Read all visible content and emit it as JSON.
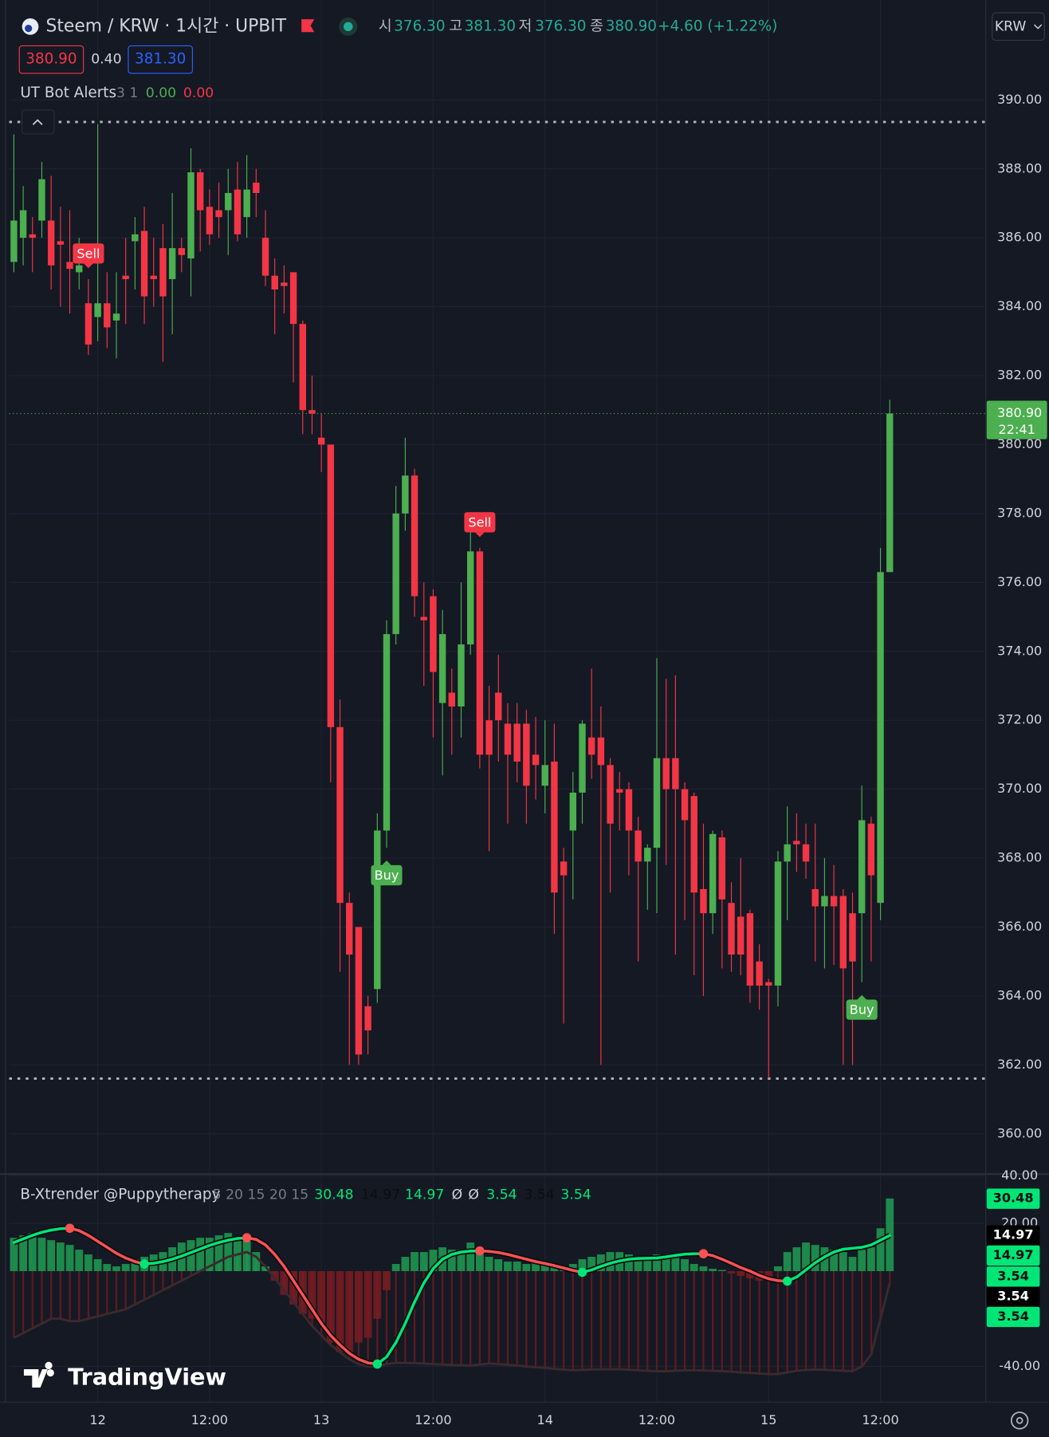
{
  "header": {
    "symbol": "Steem / KRW · 1시간 · UPBIT",
    "ohlc": [
      {
        "label": "시",
        "value": "376.30"
      },
      {
        "label": "고",
        "value": "381.30"
      },
      {
        "label": "저",
        "value": "376.30"
      },
      {
        "label": "종",
        "value": "380.90"
      }
    ],
    "change": "+4.60 (+1.22%)",
    "bid": "380.90",
    "spread": "0.40",
    "ask": "381.30",
    "currency": "KRW"
  },
  "indicator": {
    "name": "UT Bot Alerts",
    "params": "3 1",
    "values": [
      "0.00",
      "0.00"
    ]
  },
  "branding": "TradingView",
  "chart_data": [
    {
      "type": "candlestick",
      "up_color": "#4caf50",
      "down_color": "#f23645",
      "open": [
        385.3,
        386.0,
        386.1,
        386.5,
        386.5,
        385.9,
        385.3,
        385.0,
        384.1,
        383.7,
        384.1,
        383.6,
        384.9,
        385.9,
        386.2,
        384.9,
        385.7,
        384.8,
        385.7,
        385.4,
        387.9,
        386.9,
        386.8,
        386.8,
        387.4,
        386.6,
        387.6,
        386.0,
        384.9,
        384.7,
        385.0,
        383.5,
        381.0,
        380.2,
        380.0,
        371.8,
        366.7,
        366.0,
        363.7,
        364.2,
        368.8,
        374.5,
        378.0,
        379.1,
        375.0,
        375.6,
        372.5,
        372.8,
        372.4,
        374.2,
        376.9,
        372.0,
        372.8,
        371.9,
        371.9,
        371.9,
        371.0,
        370.1,
        370.8,
        367.9,
        368.8,
        369.9,
        371.5,
        371.5,
        370.7,
        370.0,
        370.0,
        368.8,
        367.9,
        368.3,
        370.9,
        370.9,
        370.0,
        369.8,
        367.1,
        366.4,
        368.6,
        366.7,
        366.3,
        366.4,
        365.0,
        364.4,
        364.3,
        367.9,
        368.5,
        368.4,
        367.1,
        366.6,
        366.9,
        366.9,
        366.4,
        366.4,
        369.0,
        366.7,
        376.3
      ],
      "high": [
        389.0,
        387.5,
        386.6,
        388.2,
        387.8,
        386.9,
        386.8,
        386.0,
        384.8,
        389.3,
        385.0,
        385.0,
        386.0,
        386.6,
        386.9,
        386.0,
        386.4,
        387.3,
        386.0,
        388.6,
        388.0,
        387.4,
        387.6,
        388.0,
        388.2,
        388.4,
        388.0,
        386.8,
        385.4,
        385.2,
        385.0,
        383.6,
        382.0,
        380.9,
        380.0,
        372.6,
        367.0,
        366.0,
        364.0,
        369.3,
        374.9,
        378.8,
        380.2,
        379.3,
        376.0,
        375.8,
        375.2,
        373.5,
        376.0,
        377.6,
        377.0,
        373.0,
        373.9,
        372.5,
        372.5,
        372.3,
        372.1,
        372.0,
        371.9,
        368.3,
        370.5,
        372.0,
        373.5,
        372.4,
        370.9,
        370.5,
        370.2,
        369.2,
        368.4,
        373.8,
        373.2,
        373.3,
        370.2,
        369.9,
        369.0,
        368.8,
        368.8,
        367.3,
        368.0,
        366.5,
        365.5,
        364.5,
        368.2,
        369.5,
        369.3,
        369.0,
        369.0,
        368.0,
        367.8,
        367.1,
        367.0,
        370.1,
        369.2,
        377.0,
        381.3
      ],
      "low": [
        385.0,
        385.2,
        385.0,
        386.0,
        384.5,
        384.0,
        383.8,
        384.5,
        382.6,
        383.0,
        382.8,
        382.5,
        383.5,
        384.5,
        383.5,
        384.0,
        382.4,
        383.2,
        385.0,
        384.3,
        385.6,
        385.8,
        386.0,
        385.5,
        385.9,
        386.0,
        386.6,
        384.6,
        383.2,
        383.8,
        381.8,
        380.3,
        380.3,
        379.2,
        370.2,
        364.7,
        362.0,
        362.0,
        362.3,
        363.8,
        368.3,
        374.2,
        377.5,
        375.0,
        373.0,
        371.5,
        370.4,
        371.0,
        371.5,
        373.9,
        370.6,
        368.2,
        370.8,
        369.0,
        370.2,
        369.0,
        369.7,
        369.3,
        365.8,
        363.2,
        366.8,
        369.0,
        370.3,
        362.0,
        367.0,
        368.8,
        367.5,
        365.0,
        366.5,
        366.4,
        367.8,
        365.2,
        366.2,
        364.6,
        364.0,
        365.8,
        364.8,
        364.7,
        364.6,
        363.8,
        363.6,
        361.6,
        363.7,
        366.2,
        367.6,
        367.4,
        365.0,
        364.8,
        364.9,
        362.0,
        362.0,
        364.4,
        365.0,
        366.2,
        376.3
      ],
      "close": [
        386.5,
        386.8,
        386.0,
        387.7,
        385.2,
        385.8,
        385.1,
        385.2,
        382.9,
        384.1,
        383.4,
        383.8,
        384.8,
        386.1,
        384.3,
        384.8,
        384.3,
        385.7,
        385.5,
        387.9,
        386.8,
        386.1,
        386.6,
        387.3,
        386.1,
        387.4,
        387.3,
        384.9,
        384.5,
        384.6,
        383.5,
        381.0,
        380.9,
        380.0,
        371.8,
        366.7,
        365.2,
        362.3,
        363.0,
        368.8,
        374.5,
        378.0,
        379.1,
        375.6,
        374.9,
        373.4,
        374.5,
        372.4,
        374.2,
        376.9,
        371.0,
        371.0,
        372.0,
        371.0,
        370.8,
        370.1,
        370.7,
        370.7,
        367.0,
        367.5,
        369.9,
        371.9,
        371.0,
        370.7,
        369.0,
        369.9,
        368.8,
        367.9,
        368.3,
        370.9,
        370.0,
        370.0,
        369.1,
        367.0,
        366.4,
        368.7,
        366.8,
        365.2,
        365.2,
        364.3,
        364.3,
        364.3,
        367.9,
        368.4,
        368.4,
        367.9,
        366.6,
        366.9,
        366.6,
        364.8,
        365.0,
        369.1,
        367.5,
        376.3,
        380.9
      ],
      "signals": [
        null,
        null,
        null,
        null,
        null,
        null,
        null,
        null,
        "Sell",
        null,
        null,
        null,
        null,
        null,
        null,
        null,
        null,
        null,
        null,
        null,
        null,
        null,
        null,
        null,
        null,
        null,
        null,
        null,
        null,
        null,
        null,
        null,
        null,
        null,
        null,
        null,
        null,
        null,
        null,
        null,
        "Buy",
        null,
        null,
        null,
        null,
        null,
        null,
        null,
        null,
        null,
        "Sell",
        null,
        null,
        null,
        null,
        null,
        null,
        null,
        null,
        null,
        null,
        null,
        null,
        null,
        null,
        null,
        null,
        null,
        null,
        null,
        null,
        null,
        null,
        null,
        null,
        null,
        null,
        null,
        null,
        null,
        null,
        null,
        null,
        null,
        null,
        null,
        null,
        null,
        null,
        null,
        null,
        "Buy",
        null,
        null,
        null
      ],
      "range_lines": [
        389.36,
        361.6
      ],
      "last_price": {
        "price": "380.90",
        "countdown": "22:41"
      },
      "xlim": [
        -0.5,
        104.2
      ],
      "xticks": [
        {
          "value": 9,
          "label": "12"
        },
        {
          "value": 21,
          "label": "12:00"
        },
        {
          "value": 33,
          "label": "13"
        },
        {
          "value": 45,
          "label": "12:00"
        },
        {
          "value": 57,
          "label": "14"
        },
        {
          "value": 69,
          "label": "12:00"
        },
        {
          "value": 81,
          "label": "15"
        },
        {
          "value": 93,
          "label": "12:00"
        }
      ],
      "ylim": [
        358.86,
        392.9
      ],
      "yticks": [
        {
          "value": 360,
          "label": "360.00"
        },
        {
          "value": 362,
          "label": "362.00"
        },
        {
          "value": 364,
          "label": "364.00"
        },
        {
          "value": 366,
          "label": "366.00"
        },
        {
          "value": 368,
          "label": "368.00"
        },
        {
          "value": 370,
          "label": "370.00"
        },
        {
          "value": 372,
          "label": "372.00"
        },
        {
          "value": 374,
          "label": "374.00"
        },
        {
          "value": 376,
          "label": "376.00"
        },
        {
          "value": 378,
          "label": "378.00"
        },
        {
          "value": 380,
          "label": "380.00"
        },
        {
          "value": 382,
          "label": "382.00"
        },
        {
          "value": 384,
          "label": "384.00"
        },
        {
          "value": 386,
          "label": "386.00"
        },
        {
          "value": 388,
          "label": "388.00"
        },
        {
          "value": 390,
          "label": "390.00"
        }
      ],
      "grid": true
    },
    {
      "type": "oscillator",
      "title": "B-Xtrender @Puppytherapy",
      "params": "5 20 15 20 15",
      "legend_values": [
        "30.48",
        "14.97",
        "14.97",
        "Ø",
        "Ø",
        "3.54",
        "3.54",
        "3.54"
      ],
      "axis_labels": [
        "30.48",
        "14.97",
        "14.97",
        "3.54",
        "3.54",
        "3.54"
      ],
      "series": [
        {
          "colors": [
            "#1e9e52",
            "#7a1c22"
          ],
          "values": [
            14,
            15,
            16,
            14,
            13,
            12,
            11,
            9,
            7,
            5,
            3,
            2,
            3,
            5,
            6,
            7,
            8,
            10,
            12,
            13,
            14,
            14,
            15,
            16,
            14,
            13,
            8,
            2,
            -4,
            -10,
            -14,
            -18,
            -20,
            -22,
            -30,
            -34,
            -34,
            -30,
            -28,
            -20,
            -8,
            3,
            6,
            8,
            8,
            9,
            10,
            9,
            9,
            12,
            9,
            6,
            5,
            4,
            4,
            3,
            4,
            3,
            2,
            2,
            3,
            5,
            6,
            7,
            8,
            8,
            7,
            6,
            6,
            7,
            7,
            6,
            5,
            3,
            2,
            1,
            0.5,
            -1,
            -2,
            -3,
            -4,
            -3,
            2,
            8,
            10,
            12,
            11,
            10,
            9,
            8,
            6,
            9,
            10,
            18,
            30.48
          ]
        },
        {
          "colors": [
            "#1b5e20",
            "#5c1a20"
          ],
          "line_color": "#3b2a2e",
          "values": [
            -28,
            -26,
            -24,
            -22,
            -20,
            -20,
            -21,
            -21,
            -20,
            -19,
            -18,
            -17,
            -16,
            -14,
            -12,
            -10,
            -8,
            -6,
            -4,
            -2,
            0,
            2,
            4,
            6,
            7,
            8,
            6,
            2,
            -3,
            -8,
            -13,
            -18,
            -23,
            -27,
            -31,
            -34,
            -37,
            -39,
            -40,
            -40,
            -39,
            -38.5,
            -38.5,
            -38.6,
            -38.8,
            -39,
            -39.2,
            -39.4,
            -39.5,
            -39.6,
            -39.2,
            -38.8,
            -39,
            -39.3,
            -39.6,
            -40,
            -40.3,
            -40.6,
            -41,
            -41.3,
            -41.6,
            -41.5,
            -41.3,
            -41.2,
            -41.2,
            -41.2,
            -41.4,
            -41.6,
            -41.8,
            -42,
            -42,
            -41.8,
            -41.6,
            -41.6,
            -41.7,
            -41.8,
            -42,
            -42.2,
            -42.5,
            -42.7,
            -43,
            -43.2,
            -43.2,
            -42.5,
            -41.8,
            -41.5,
            -41.3,
            -41.4,
            -41.6,
            -41.8,
            -42,
            -40,
            -35,
            -20,
            -5
          ]
        },
        {
          "colors": [
            "#00e676",
            "#ff5252"
          ],
          "values": [
            12,
            13.5,
            15,
            16.3,
            17.2,
            17.8,
            18,
            17,
            15,
            12.5,
            10,
            7.5,
            5.5,
            4,
            3,
            3.3,
            4,
            5,
            6.3,
            7.8,
            9.3,
            10.8,
            12,
            13,
            13.7,
            14,
            13.3,
            11,
            7,
            2,
            -4,
            -10,
            -16,
            -22,
            -27,
            -31,
            -34.5,
            -37,
            -38.5,
            -39,
            -36,
            -30,
            -22,
            -13,
            -5,
            1,
            5,
            7,
            8,
            8.4,
            8.5,
            8.3,
            7.8,
            7,
            6,
            5,
            4,
            3.2,
            2.3,
            1.3,
            0.3,
            -0.5,
            0.5,
            2,
            3.3,
            4.3,
            5,
            5.3,
            5.4,
            5.5,
            6,
            6.6,
            7.1,
            7.3,
            7.3,
            6.5,
            5,
            3.3,
            1.5,
            0,
            -1.8,
            -3.2,
            -4,
            -4.2,
            -2.5,
            0.5,
            3.5,
            6,
            8,
            9.2,
            9.6,
            10,
            11,
            13,
            14.97
          ]
        }
      ],
      "ylim": [
        -55,
        40
      ],
      "yticks": [
        {
          "value": 40,
          "label": "40.00"
        },
        {
          "value": 20,
          "label": "20.00"
        },
        {
          "value": -40,
          "label": "-40.00"
        }
      ],
      "grid": true
    }
  ]
}
